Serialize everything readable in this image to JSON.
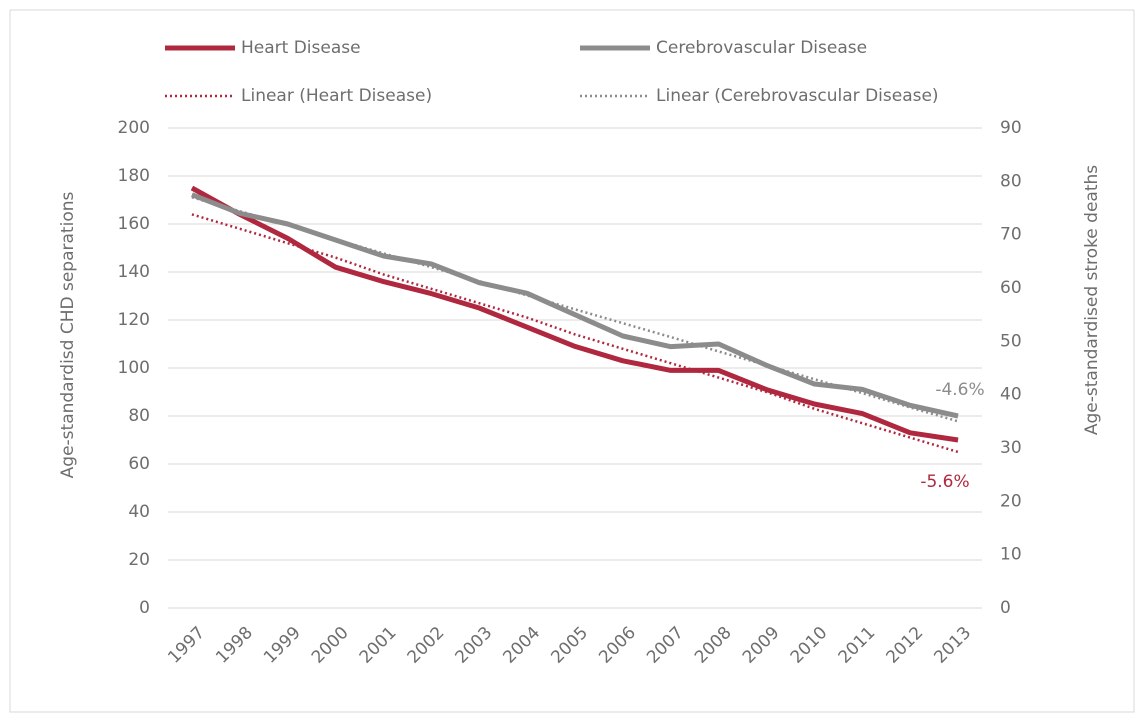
{
  "chart_data": {
    "type": "line",
    "categories": [
      "1997",
      "1998",
      "1999",
      "2000",
      "2001",
      "2002",
      "2003",
      "2004",
      "2005",
      "2006",
      "2007",
      "2008",
      "2009",
      "2010",
      "2011",
      "2012",
      "2013"
    ],
    "series": [
      {
        "name": "Heart Disease",
        "color": "#b0283f",
        "style": "solid",
        "values": [
          175,
          164,
          154,
          142,
          136,
          131,
          125,
          117,
          109,
          103,
          99,
          99,
          91,
          85,
          81,
          73,
          70
        ]
      },
      {
        "name": "Cerebrovascular Disease",
        "color": "#8c8c8c",
        "style": "solid",
        "axis": "y2",
        "values": [
          77.5,
          74,
          72,
          69,
          66,
          64.5,
          61,
          59,
          55,
          51,
          49,
          49.5,
          45.5,
          42,
          41,
          38,
          36
        ]
      },
      {
        "name": "Linear (Heart Disease)",
        "color": "#b0283f",
        "style": "dotted",
        "values": [
          164,
          158,
          152,
          146,
          139,
          133,
          127,
          121,
          114,
          108,
          102,
          96,
          90,
          83,
          77,
          71,
          65
        ]
      },
      {
        "name": "Linear (Cerebrovascular Disease)",
        "color": "#8c8c8c",
        "style": "dotted",
        "axis": "y2",
        "values": [
          77,
          74.4,
          71.8,
          69.1,
          66.5,
          63.9,
          61.3,
          58.6,
          56,
          53.4,
          50.8,
          48.1,
          45.5,
          42.9,
          40.3,
          37.6,
          35
        ]
      }
    ],
    "ylabel": "Age-standardisd CHD separations",
    "y2label": "Age-standardised stroke deaths",
    "ylim": [
      0,
      200
    ],
    "yticks": [
      0,
      20,
      40,
      60,
      80,
      100,
      120,
      140,
      160,
      180,
      200
    ],
    "y2lim": [
      0,
      90
    ],
    "y2ticks": [
      0,
      10,
      20,
      30,
      40,
      50,
      60,
      70,
      80,
      90
    ],
    "grid": true,
    "annotations": [
      {
        "text": "-4.6%",
        "color": "#8c8c8c"
      },
      {
        "text": "-5.6%",
        "color": "#b0283f"
      }
    ]
  }
}
